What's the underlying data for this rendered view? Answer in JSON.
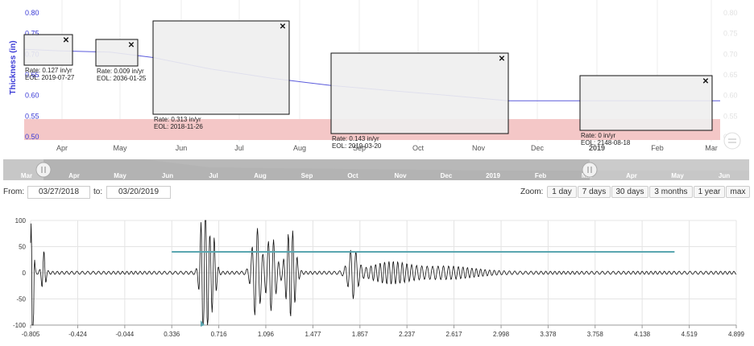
{
  "top_chart": {
    "ylabel": "Thickness (in)",
    "yticks": [
      "0.80",
      "0.75",
      "0.70",
      "0.65",
      "0.60",
      "0.55",
      "0.50"
    ],
    "xticks": [
      "Apr",
      "May",
      "Jun",
      "Jul",
      "Aug",
      "Sep",
      "Oct",
      "Nov",
      "Dec",
      "2019",
      "Feb",
      "Mar"
    ],
    "colors": {
      "line": "#5b5bdc",
      "band": "#f4c7c7",
      "axis_text": "#3b3bd6"
    },
    "thickness_series": {
      "x": [
        "2018-03-27",
        "2018-04-15",
        "2018-05-10",
        "2018-06-01",
        "2018-07-01",
        "2018-08-01",
        "2018-09-01",
        "2018-10-01",
        "2018-11-01",
        "2018-12-01",
        "2019-01-01",
        "2019-02-01",
        "2019-03-20"
      ],
      "y": [
        0.712,
        0.708,
        0.705,
        0.692,
        0.664,
        0.642,
        0.624,
        0.612,
        0.6,
        0.587,
        0.587,
        0.587,
        0.587
      ]
    },
    "band": [
      0.5,
      0.55
    ],
    "annotations": [
      {
        "rate": "Rate: 0.127 in/yr",
        "eol": "EOL: 2019-07-27"
      },
      {
        "rate": "Rate: 0.009 in/yr",
        "eol": "EOL: 2036-01-25"
      },
      {
        "rate": "Rate: 0.313 in/yr",
        "eol": "EOL: 2018-11-26"
      },
      {
        "rate": "Rate: 0.143 in/yr",
        "eol": "EOL: 2019-03-20"
      },
      {
        "rate": "Rate: 0 in/yr",
        "eol": "EOL: 2148-08-18"
      }
    ],
    "close_glyph": "✕"
  },
  "navigator": {
    "labels": [
      "Mar",
      "Apr",
      "May",
      "Jun",
      "Jul",
      "Aug",
      "Sep",
      "Oct",
      "Nov",
      "Dec",
      "2019",
      "Feb",
      "Mar",
      "Apr",
      "May",
      "Jun"
    ]
  },
  "range": {
    "from_label": "From:",
    "to_label": "to:",
    "from": "03/27/2018",
    "to": "03/20/2019",
    "zoom_label": "Zoom:",
    "zoom_buttons": [
      "1 day",
      "7 days",
      "30 days",
      "3 months",
      "1 year",
      "max"
    ]
  },
  "wave_chart": {
    "yticks": [
      "100",
      "50",
      "0",
      "-50",
      "-100"
    ],
    "xticks": [
      "-0.805",
      "-0.424",
      "-0.044",
      "0.336",
      "0.716",
      "1.096",
      "1.477",
      "1.857",
      "2.237",
      "2.617",
      "2.998",
      "3.378",
      "3.758",
      "4.138",
      "4.519",
      "4.899"
    ],
    "xlim": [
      -0.805,
      4.899
    ],
    "ylim": [
      -100,
      100
    ],
    "gate": {
      "x": [
        0.336,
        4.4
      ],
      "y": 40
    },
    "colors": {
      "wave": "#111111",
      "gate": "#5aa6b0",
      "grid": "#e4e4e4"
    }
  }
}
